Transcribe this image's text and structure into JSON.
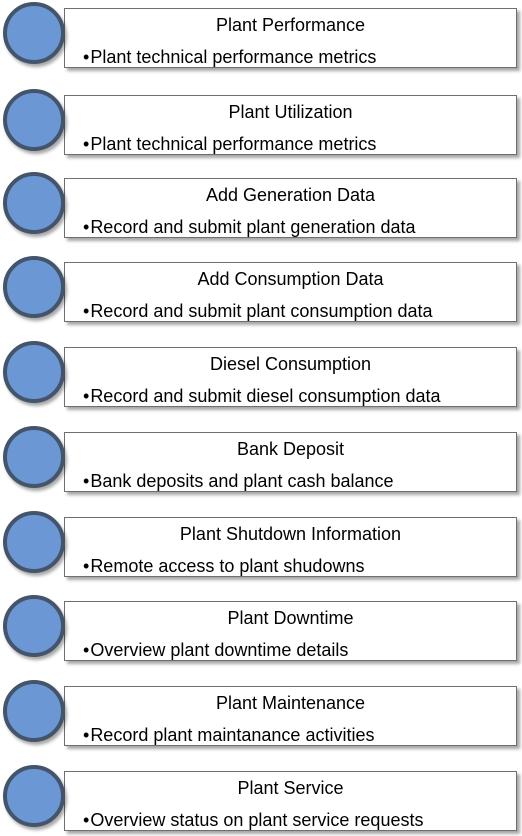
{
  "menu": {
    "bullet": "•",
    "items": [
      {
        "title": "Plant Performance",
        "desc": "Plant technical performance metrics"
      },
      {
        "title": "Plant Utilization",
        "desc": "Plant technical performance metrics"
      },
      {
        "title": "Add Generation Data",
        "desc": "Record and submit plant generation data"
      },
      {
        "title": "Add Consumption Data",
        "desc": "Record and submit plant consumption data"
      },
      {
        "title": "Diesel Consumption",
        "desc": "Record and submit diesel consumption data"
      },
      {
        "title": "Bank Deposit",
        "desc": "Bank deposits and plant cash balance"
      },
      {
        "title": "Plant Shutdown Information",
        "desc": "Remote access to plant shudowns"
      },
      {
        "title": "Plant Downtime",
        "desc": "Overview plant downtime details"
      },
      {
        "title": "Plant Maintenance",
        "desc": "Record plant maintanance activities"
      },
      {
        "title": "Plant Service",
        "desc": "Overview status on plant service requests"
      }
    ]
  },
  "colors": {
    "circle_fill": "#6b97d4",
    "circle_border": "#44546a",
    "card_border": "#6f6f6f",
    "text": "#000000"
  }
}
